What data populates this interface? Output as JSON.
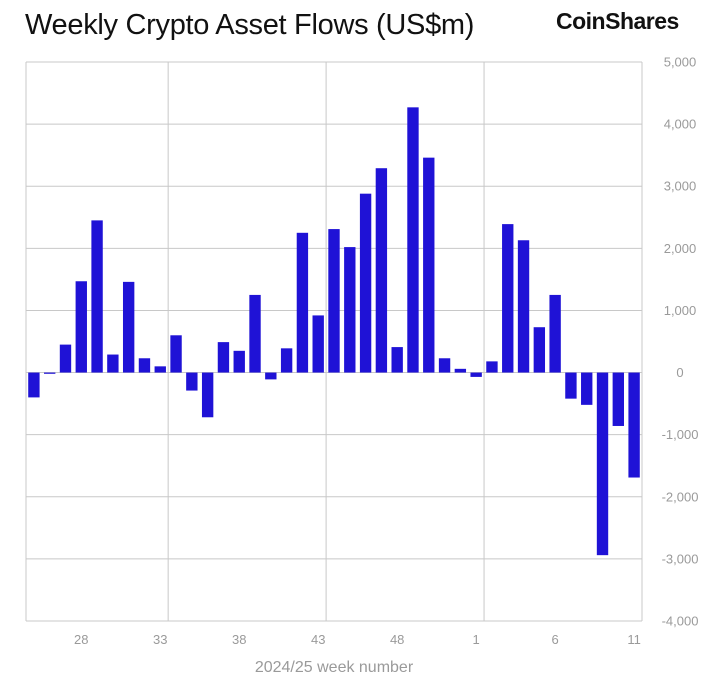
{
  "header": {
    "title": "Weekly Crypto Asset Flows (US$m)",
    "brand": "CoinShares"
  },
  "colors": {
    "bar": "#1f12d6",
    "grid": "#c8c8c8",
    "tick_text": "#9a9a9a",
    "title_text": "#111111"
  },
  "chart_data": {
    "type": "bar",
    "title": "Weekly Crypto Asset Flows (US$m)",
    "xlabel": "2024/25 week number",
    "ylabel": "",
    "ylim": [
      -4000,
      5000
    ],
    "yticks": [
      5000,
      4000,
      3000,
      2000,
      1000,
      0,
      -1000,
      -2000,
      -3000,
      -4000
    ],
    "ytick_labels": [
      "5,000",
      "4,000",
      "3,000",
      "2,000",
      "1,000",
      "0",
      "-1,000",
      "-2,000",
      "-3,000",
      "-4,000"
    ],
    "grid": true,
    "y_axis_position": "right",
    "categories": [
      "25",
      "26",
      "27",
      "28",
      "29",
      "30",
      "31",
      "32",
      "33",
      "34",
      "35",
      "36",
      "37",
      "38",
      "39",
      "40",
      "41",
      "42",
      "43",
      "44",
      "45",
      "46",
      "47",
      "48",
      "49",
      "50",
      "51",
      "52",
      "1",
      "2",
      "3",
      "4",
      "5",
      "6",
      "7",
      "8",
      "9",
      "10",
      "11"
    ],
    "values": [
      -400,
      -20,
      450,
      1470,
      2450,
      290,
      1460,
      230,
      100,
      600,
      -290,
      -720,
      490,
      350,
      1250,
      -110,
      390,
      2250,
      920,
      2310,
      2020,
      2880,
      3290,
      410,
      4270,
      3460,
      230,
      60,
      -70,
      180,
      2390,
      2130,
      730,
      1250,
      -420,
      -520,
      -2940,
      -860,
      -1690
    ],
    "xtick_labels": [
      {
        "label": "28",
        "index": 3
      },
      {
        "label": "33",
        "index": 8
      },
      {
        "label": "38",
        "index": 13
      },
      {
        "label": "43",
        "index": 18
      },
      {
        "label": "48",
        "index": 23
      },
      {
        "label": "1",
        "index": 28
      },
      {
        "label": "6",
        "index": 33
      },
      {
        "label": "11",
        "index": 38
      }
    ],
    "vertical_grid_after_bar_index": [
      8,
      18,
      28
    ]
  }
}
